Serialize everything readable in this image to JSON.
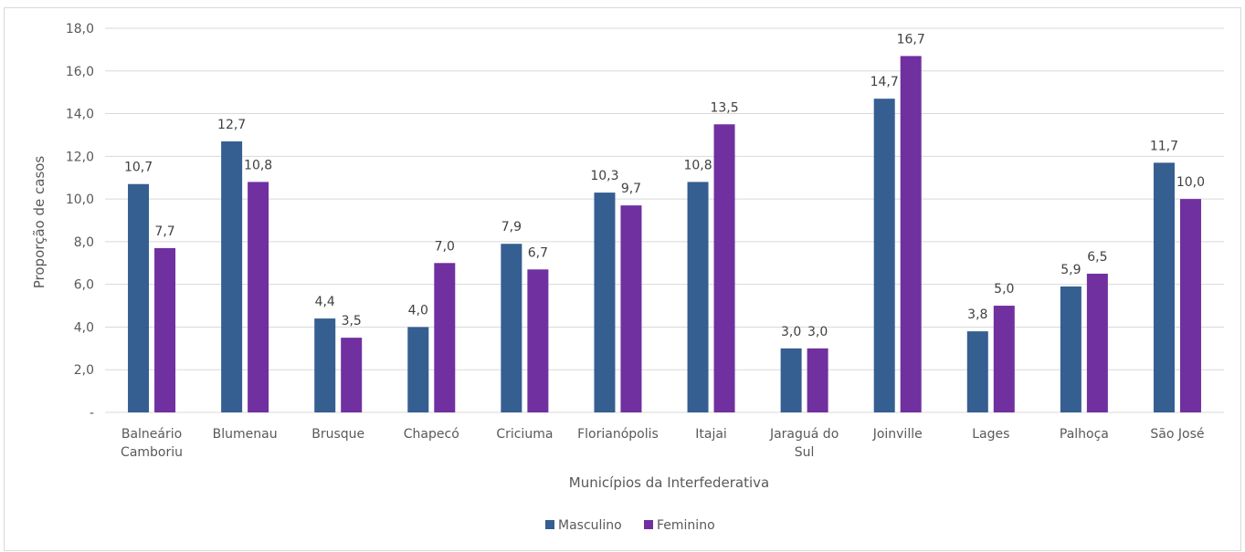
{
  "chart_data": {
    "type": "bar",
    "title": "",
    "xlabel": "Municípios da Interfederativa",
    "ylabel": "Proporção de casos",
    "ylim": [
      0,
      18
    ],
    "yticks": [
      0,
      2,
      4,
      6,
      8,
      10,
      12,
      14,
      16,
      18
    ],
    "ytick_labels": [
      "-",
      "2,0",
      "4,0",
      "6,0",
      "8,0",
      "10,0",
      "12,0",
      "14,0",
      "16,0",
      "18,0"
    ],
    "grid": true,
    "legend_position": "bottom",
    "categories": [
      [
        "Balneário",
        "Camboriu"
      ],
      [
        "Blumenau"
      ],
      [
        "Brusque"
      ],
      [
        "Chapecó"
      ],
      [
        "Criciuma"
      ],
      [
        "Florianópolis"
      ],
      [
        "Itajai"
      ],
      [
        "Jaraguá do",
        "Sul"
      ],
      [
        "Joinville"
      ],
      [
        "Lages"
      ],
      [
        "Palhoça"
      ],
      [
        "São José"
      ]
    ],
    "series": [
      {
        "name": "Masculino",
        "color": "#355E91",
        "values": [
          10.7,
          12.7,
          4.4,
          4.0,
          7.9,
          10.3,
          10.8,
          3.0,
          14.7,
          3.8,
          5.9,
          11.7
        ],
        "labels": [
          "10,7",
          "12,7",
          "4,4",
          "4,0",
          "7,9",
          "10,3",
          "10,8",
          "3,0",
          "14,7",
          "3,8",
          "5,9",
          "11,7"
        ]
      },
      {
        "name": "Feminino",
        "color": "#7030A0",
        "values": [
          7.7,
          10.8,
          3.5,
          7.0,
          6.7,
          9.7,
          13.5,
          3.0,
          16.7,
          5.0,
          6.5,
          10.0
        ],
        "labels": [
          "7,7",
          "10,8",
          "3,5",
          "7,0",
          "6,7",
          "9,7",
          "13,5",
          "3,0",
          "16,7",
          "5,0",
          "6,5",
          "10,0"
        ]
      }
    ]
  }
}
